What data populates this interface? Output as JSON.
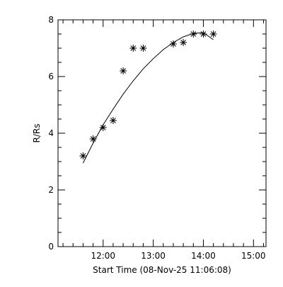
{
  "chart_data": {
    "type": "scatter",
    "title": "",
    "xlabel": "Start Time (08-Nov-25 11:06:08)",
    "ylabel": "R/Rs",
    "x_unit": "hours",
    "xlim": [
      "11:06",
      "15:15"
    ],
    "ylim": [
      0,
      8
    ],
    "x_ticks": [
      {
        "time": "12:00",
        "label": "12:00"
      },
      {
        "time": "13:00",
        "label": "13:00"
      },
      {
        "time": "14:00",
        "label": "14:00"
      },
      {
        "time": "15:00",
        "label": "15:00"
      }
    ],
    "x_minor_ticks": [
      "11:12",
      "11:24",
      "11:36",
      "11:48",
      "12:12",
      "12:24",
      "12:36",
      "12:48",
      "13:12",
      "13:24",
      "13:36",
      "13:48",
      "14:12",
      "14:24",
      "14:36",
      "14:48",
      "15:12"
    ],
    "y_ticks": [
      0,
      2,
      4,
      6,
      8
    ],
    "y_minor_ticks": [
      0.5,
      1,
      1.5,
      2.5,
      3,
      3.5,
      4.5,
      5,
      5.5,
      6.5,
      7,
      7.5
    ],
    "grid": false,
    "series": [
      {
        "marker": "asterisk",
        "points": [
          {
            "x": "11:36",
            "y": 3.2
          },
          {
            "x": "11:48",
            "y": 3.8
          },
          {
            "x": "12:00",
            "y": 4.2
          },
          {
            "x": "12:12",
            "y": 4.45
          },
          {
            "x": "12:24",
            "y": 6.2
          },
          {
            "x": "12:36",
            "y": 7.0
          },
          {
            "x": "12:48",
            "y": 7.0
          },
          {
            "x": "13:24",
            "y": 7.15
          },
          {
            "x": "13:36",
            "y": 7.2
          },
          {
            "x": "13:48",
            "y": 7.5
          },
          {
            "x": "14:00",
            "y": 7.5
          },
          {
            "x": "14:12",
            "y": 7.5
          }
        ]
      },
      {
        "style": "line",
        "points": [
          {
            "x": "11:36",
            "y": 2.95
          },
          {
            "x": "11:48",
            "y": 3.65
          },
          {
            "x": "12:00",
            "y": 4.3
          },
          {
            "x": "12:12",
            "y": 4.85
          },
          {
            "x": "12:24",
            "y": 5.38
          },
          {
            "x": "12:36",
            "y": 5.85
          },
          {
            "x": "12:48",
            "y": 6.27
          },
          {
            "x": "13:00",
            "y": 6.63
          },
          {
            "x": "13:12",
            "y": 6.95
          },
          {
            "x": "13:24",
            "y": 7.2
          },
          {
            "x": "13:36",
            "y": 7.4
          },
          {
            "x": "13:48",
            "y": 7.52
          },
          {
            "x": "14:00",
            "y": 7.55
          },
          {
            "x": "14:12",
            "y": 7.3
          }
        ]
      }
    ],
    "colors": {
      "axes": "#000000",
      "data": "#000000",
      "background": "#ffffff"
    }
  }
}
